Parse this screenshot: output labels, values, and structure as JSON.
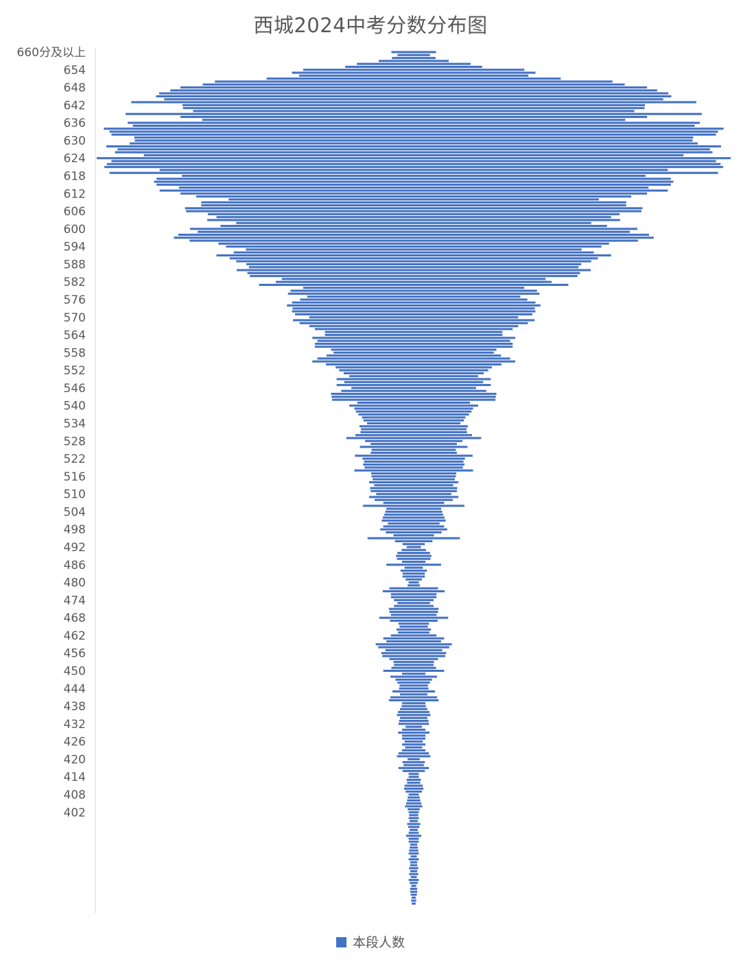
{
  "chart_data": {
    "type": "bar",
    "orientation": "horizontal",
    "title": "西城2024中考分数分布图",
    "legend": {
      "position": "bottom"
    },
    "color": "#4472C4",
    "axis_color": "#d9d9d9",
    "grid": false,
    "series": [
      {
        "name": "本段人数",
        "values": [
          88,
          64,
          86,
          138,
          224,
          270,
          436,
          480,
          452,
          580,
          784,
          832,
          920,
          960,
          1004,
          1016,
          984,
          1114,
          912,
          910,
          870,
          1136,
          920,
          834,
          1128,
          1108,
          1222,
          1200,
          1192,
          1102,
          1100,
          1120,
          1212,
          1168,
          1178,
          1064,
          1250,
          1192,
          1210,
          1220,
          1002,
          1200,
          914,
          1014,
          1024,
          1014,
          926,
          1002,
          920,
          858,
          730,
          838,
          838,
          902,
          898,
          812,
          778,
          814,
          700,
          762,
          882,
          852,
          928,
          946,
          884,
          770,
          740,
          662,
          710,
          778,
          726,
          700,
          660,
          650,
          698,
          656,
          646,
          520,
          544,
          610,
          436,
          486,
          496,
          420,
          448,
          480,
          500,
          478,
          480,
          468,
          412,
          476,
          450,
          412,
          390,
          350,
          350,
          400,
          380,
          390,
          390,
          326,
          316,
          344,
          380,
          400,
          346,
          308,
          294,
          276,
          254,
          304,
          274,
          304,
          246,
          286,
          326,
          324,
          322,
          222,
          254,
          234,
          228,
          218,
          204,
          198,
          184,
          214,
          208,
          210,
          230,
          266,
          192,
          170,
          212,
          166,
          170,
          232,
          202,
          196,
          200,
          194,
          234,
          168,
          166,
          162,
          176,
          156,
          172,
          170,
          148,
          176,
          154,
          120,
          200,
          108,
          112,
          116,
          122,
          126,
          102,
          120,
          132,
          110,
          80,
          182,
          74,
          44,
          28,
          48,
          64,
          70,
          66,
          46,
          108,
          36,
          52,
          44,
          44,
          32,
          20,
          24,
          96,
          122,
          90,
          90,
          78,
          64,
          78,
          98,
          96,
          90,
          136,
          94,
          60,
          56,
          68,
          62,
          90,
          120,
          108,
          150,
          140,
          112,
          128,
          124,
          96,
          80,
          78,
          88,
          120,
          46,
          92,
          72,
          64,
          56,
          58,
          84,
          54,
          92,
          98,
          46,
          48,
          54,
          62,
          66,
          54,
          58,
          60,
          32,
          46,
          62,
          46,
          46,
          36,
          46,
          34,
          46,
          60,
          66,
          24,
          44,
          40,
          60,
          44,
          20,
          20,
          28,
          26,
          36,
          38,
          32,
          20,
          24,
          26,
          30,
          34,
          24,
          20,
          18,
          20,
          16,
          26,
          22,
          16,
          20,
          30,
          20,
          20,
          14,
          16,
          18,
          20,
          12,
          20,
          14,
          14,
          18,
          14,
          18,
          12,
          20,
          16,
          10,
          14,
          14,
          12,
          8,
          10,
          8
        ]
      }
    ],
    "y_tick_labels": [
      "660分及以上",
      "654",
      "648",
      "642",
      "636",
      "630",
      "624",
      "618",
      "612",
      "606",
      "600",
      "594",
      "588",
      "582",
      "576",
      "570",
      "564",
      "558",
      "552",
      "546",
      "540",
      "534",
      "528",
      "522",
      "516",
      "510",
      "504",
      "498",
      "492",
      "486",
      "480",
      "474",
      "468",
      "462",
      "456",
      "450",
      "444",
      "438",
      "432",
      "426",
      "420",
      "414",
      "408",
      "402"
    ]
  }
}
